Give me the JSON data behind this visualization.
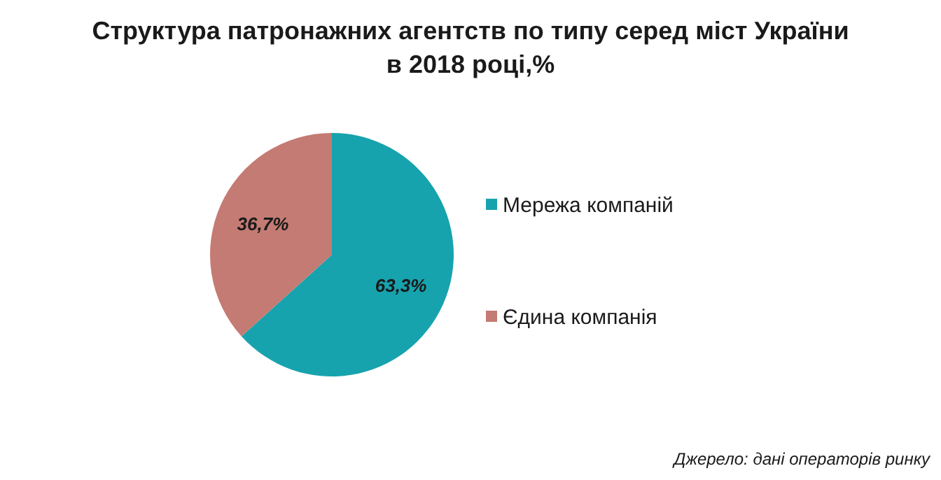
{
  "chart_data": {
    "type": "pie",
    "title": "Структура патронажних агентств по типу серед міст України в 2018 році,%",
    "categories": [
      "Мережа компаній",
      "Єдина компанія"
    ],
    "values": [
      63.3,
      36.7
    ],
    "colors": [
      "#17a3ae",
      "#c47b73"
    ],
    "value_labels": [
      "63,3%",
      "36,7%"
    ],
    "legend": "right",
    "annotations": [
      "Джерело: дані операторів ринку"
    ]
  }
}
